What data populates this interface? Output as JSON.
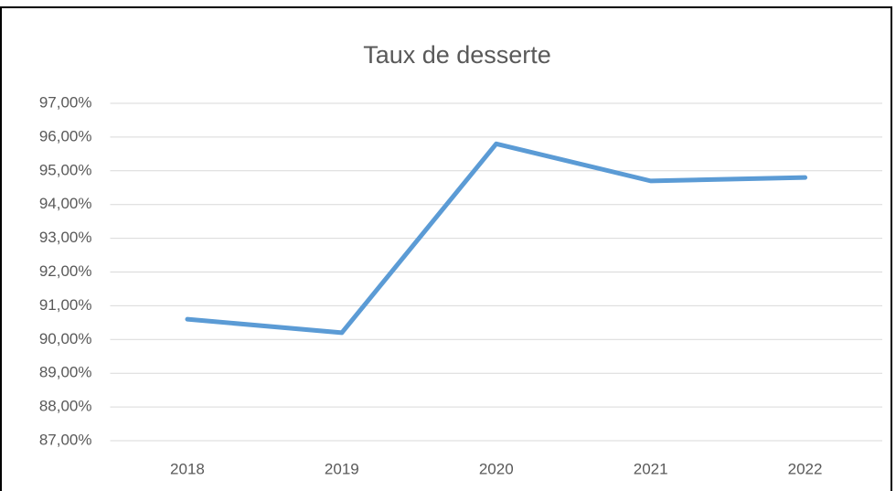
{
  "chart_data": {
    "type": "line",
    "title": "Taux de desserte",
    "categories": [
      "2018",
      "2019",
      "2020",
      "2021",
      "2022"
    ],
    "series": [
      {
        "name": "Taux de desserte",
        "color": "#5b9bd5",
        "values": [
          90.6,
          90.2,
          95.8,
          94.7,
          94.8
        ]
      }
    ],
    "ylim": [
      87,
      97
    ],
    "yticks": [
      {
        "value": 87,
        "label": "87,00%"
      },
      {
        "value": 88,
        "label": "88,00%"
      },
      {
        "value": 89,
        "label": "89,00%"
      },
      {
        "value": 90,
        "label": "90,00%"
      },
      {
        "value": 91,
        "label": "91,00%"
      },
      {
        "value": 92,
        "label": "92,00%"
      },
      {
        "value": 93,
        "label": "93,00%"
      },
      {
        "value": 94,
        "label": "94,00%"
      },
      {
        "value": 95,
        "label": "95,00%"
      },
      {
        "value": 96,
        "label": "96,00%"
      },
      {
        "value": 97,
        "label": "97,00%"
      }
    ],
    "grid": true
  }
}
